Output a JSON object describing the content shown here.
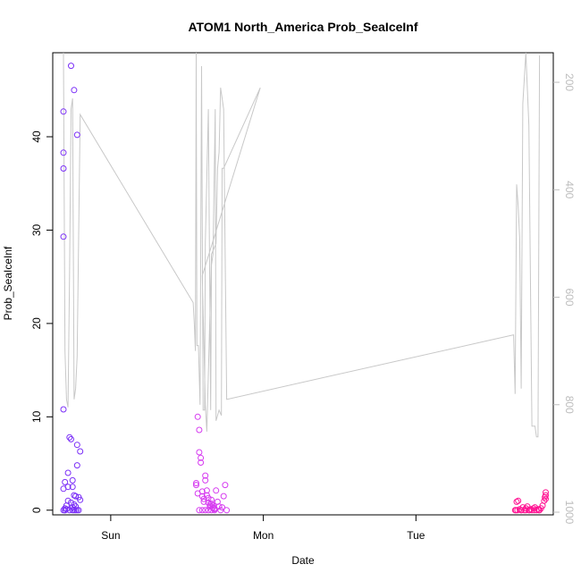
{
  "chart_data": {
    "type": "scatter",
    "title": "ATOM1 North_America Prob_SeaIceInf",
    "xlabel": "Date",
    "ylabel": "Prob_SeaIceInf",
    "x_unit": "days since Saturday 00:00",
    "x_range": [
      2.62,
      5.9
    ],
    "x_ticks": [
      {
        "value": 3,
        "label": "Sun"
      },
      {
        "value": 4,
        "label": "Mon"
      },
      {
        "value": 5,
        "label": "Tue"
      }
    ],
    "ylim": [
      -0.5,
      49
    ],
    "y_ticks": [
      0,
      10,
      20,
      30,
      40
    ],
    "y2_reversed": true,
    "y2lim": [
      1005,
      145
    ],
    "y2_ticks": [
      200,
      400,
      600,
      800,
      1000
    ],
    "grid": false,
    "legend": "none",
    "colors": {
      "cluster1": "#7b2ff7",
      "cluster2": "#d63cf0",
      "cluster3": "#ff1493",
      "pressure_line": "#c8c8c8"
    },
    "series": [
      {
        "kind": "points",
        "color": "#7b2ff7",
        "x": [
          2.69,
          2.69,
          2.69,
          2.69,
          2.69,
          2.69,
          2.7,
          2.7,
          2.71,
          2.72,
          2.73,
          2.74,
          2.75,
          2.75,
          2.76,
          2.77,
          2.78,
          2.78,
          2.79,
          2.8,
          2.69,
          2.7,
          2.71,
          2.73,
          2.75,
          2.76,
          2.77,
          2.72,
          2.74,
          2.76,
          2.78,
          2.79,
          2.7,
          2.72,
          2.74,
          2.76,
          2.78,
          2.8,
          2.75,
          2.77
        ],
        "y": [
          42.7,
          38.3,
          36.6,
          29.3,
          10.8,
          2.3,
          3.0,
          0.2,
          0.5,
          4.0,
          7.8,
          7.6,
          3.2,
          2.5,
          1.6,
          1.5,
          7.0,
          4.8,
          1.4,
          1.1,
          0.0,
          0.0,
          0.1,
          0.0,
          0.0,
          0.0,
          0.0,
          1.0,
          0.8,
          0.6,
          0.0,
          0.0,
          0.0,
          2.5,
          47.6,
          45.0,
          40.2,
          6.3,
          0.3,
          0.4
        ]
      },
      {
        "kind": "points",
        "color": "#d63cf0",
        "x": [
          3.56,
          3.56,
          3.57,
          3.57,
          3.58,
          3.58,
          3.59,
          3.59,
          3.6,
          3.6,
          3.61,
          3.61,
          3.62,
          3.62,
          3.63,
          3.63,
          3.64,
          3.64,
          3.65,
          3.65,
          3.66,
          3.66,
          3.67,
          3.67,
          3.68,
          3.68,
          3.69,
          3.7,
          3.71,
          3.72,
          3.73,
          3.74,
          3.75,
          3.76,
          3.58,
          3.6,
          3.62,
          3.64,
          3.66,
          3.68
        ],
        "y": [
          2.9,
          2.7,
          1.8,
          10.0,
          8.6,
          6.2,
          5.6,
          5.1,
          2.0,
          1.5,
          1.2,
          0.9,
          3.7,
          3.2,
          2.1,
          1.6,
          1.3,
          0.8,
          0.6,
          0.4,
          1.1,
          0.7,
          0.5,
          0.3,
          0.2,
          0.1,
          2.1,
          0.9,
          0.4,
          0.0,
          0.3,
          1.5,
          2.7,
          0.0,
          0.0,
          0.0,
          0.0,
          0.0,
          0.0,
          0.0
        ]
      },
      {
        "kind": "points",
        "color": "#ff1493",
        "x": [
          5.65,
          5.66,
          5.67,
          5.68,
          5.69,
          5.7,
          5.71,
          5.72,
          5.73,
          5.74,
          5.75,
          5.76,
          5.77,
          5.78,
          5.79,
          5.8,
          5.81,
          5.82,
          5.83,
          5.84,
          5.845,
          5.85,
          5.85,
          5.85,
          5.655,
          5.665,
          5.69,
          5.72,
          5.745,
          5.775,
          5.805
        ],
        "y": [
          0.0,
          0.9,
          1.0,
          0.1,
          0.0,
          0.3,
          0.0,
          0.2,
          0.4,
          0.0,
          0.1,
          0.0,
          0.2,
          0.3,
          0.0,
          0.1,
          0.0,
          0.2,
          0.5,
          1.0,
          1.4,
          1.2,
          1.6,
          1.9,
          0.0,
          0.0,
          0.0,
          0.0,
          0.0,
          0.0,
          0.0
        ]
      },
      {
        "kind": "line",
        "axis": "right",
        "color": "#c8c8c8",
        "x": [
          2.69,
          2.7,
          2.71,
          2.72,
          2.73,
          2.74,
          2.75,
          2.76,
          2.77,
          2.78,
          2.8,
          3.54,
          3.548,
          3.555,
          3.56,
          3.565,
          3.575,
          3.585,
          3.595,
          3.605,
          3.615,
          3.62,
          3.64,
          3.655,
          3.66,
          3.67,
          3.685,
          3.69,
          3.71,
          3.725,
          3.73,
          3.735,
          3.74,
          3.98,
          3.6,
          3.62,
          3.63,
          3.66,
          3.69,
          3.7,
          3.71,
          3.72,
          3.74,
          3.76,
          5.64,
          5.65,
          5.66,
          5.67,
          5.68,
          5.69,
          5.7,
          5.72,
          5.74,
          5.76,
          5.78,
          5.79,
          5.8,
          5.81
        ],
        "y": [
          145,
          700,
          790,
          805,
          560,
          250,
          230,
          790,
          770,
          710,
          260,
          610,
          650,
          700,
          145,
          690,
          690,
          800,
          170,
          810,
          810,
          500,
          250,
          810,
          540,
          520,
          250,
          830,
          810,
          820,
          360,
          360,
          360,
          210,
          560,
          800,
          850,
          520,
          500,
          360,
          330,
          210,
          250,
          790,
          670,
          780,
          390,
          430,
          490,
          770,
          240,
          145,
          280,
          840,
          840,
          860,
          860,
          150
        ]
      }
    ]
  }
}
